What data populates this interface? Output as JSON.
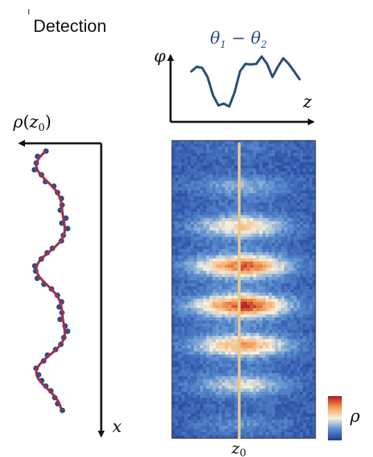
{
  "title": "Detection",
  "phase_plot": {
    "y_label": "φ",
    "x_label": "z",
    "curve_label_theta": "θ",
    "curve_label_sub1": "1",
    "curve_label_minus": " − ",
    "curve_label_sub2": "2",
    "curve_color": "#2a4f7e",
    "phase_curve": [
      0.72,
      0.8,
      0.78,
      0.62,
      0.3,
      0.12,
      0.15,
      0.1,
      0.35,
      0.72,
      0.85,
      0.84,
      0.85,
      0.98,
      0.85,
      0.62,
      0.8,
      0.95,
      0.85,
      0.72,
      0.58
    ]
  },
  "profile_plot": {
    "top_label_rho": "ρ",
    "top_label_paren_open": "(",
    "top_label_z": "z",
    "top_label_sub": "0",
    "top_label_paren_close": ")",
    "x_axis_label": "x",
    "fit_color": "#a3304d",
    "points_color": "#2d4f86"
  },
  "density_image": {
    "slice_label_z": "z",
    "slice_label_sub": "0",
    "slice_color": "#e8c88c"
  },
  "colorbar": {
    "label": "ρ",
    "colors": [
      "#1f3c98",
      "#5b8fd0",
      "#f7f2de",
      "#f59a50",
      "#b01620"
    ]
  }
}
